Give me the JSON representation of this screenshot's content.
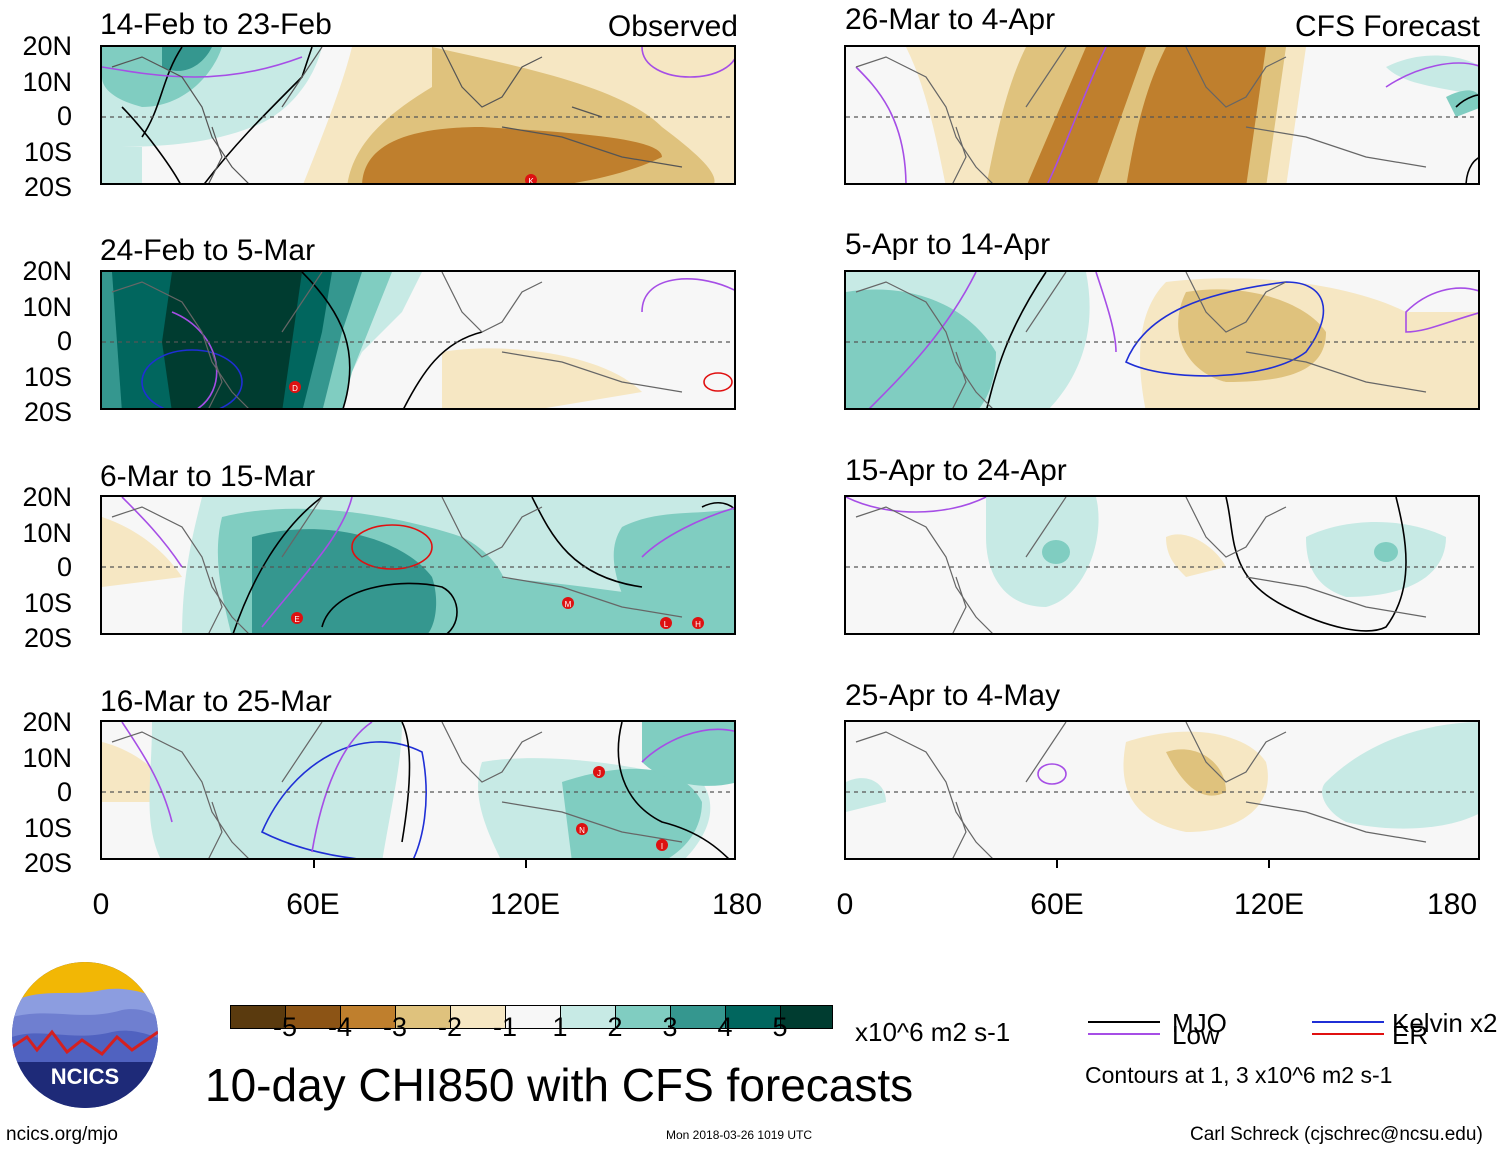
{
  "figure": {
    "title": "10-day CHI850 with CFS forecasts",
    "left_column_label": "Observed",
    "right_column_label": "CFS Forecast",
    "y_ticks": [
      "20N",
      "10N",
      "0",
      "10S",
      "20S"
    ],
    "x_ticks": [
      "0",
      "60E",
      "120E",
      "180"
    ]
  },
  "panels": {
    "p0": {
      "title": "14-Feb to 23-Feb"
    },
    "p1": {
      "title": "24-Feb to 5-Mar"
    },
    "p2": {
      "title": "6-Mar to 15-Mar"
    },
    "p3": {
      "title": "16-Mar to 25-Mar"
    },
    "p4": {
      "title": "26-Mar to 4-Apr"
    },
    "p5": {
      "title": "5-Apr to 14-Apr"
    },
    "p6": {
      "title": "15-Apr to 24-Apr"
    },
    "p7": {
      "title": "25-Apr to 4-May"
    }
  },
  "storm_markers": {
    "p0": [
      "K"
    ],
    "p1": [
      "D"
    ],
    "p2": [
      "E",
      "M",
      "L",
      "H"
    ],
    "p3": [
      "J",
      "N",
      "I"
    ]
  },
  "colorbar": {
    "labels": [
      "-5",
      "-4",
      "-3",
      "-2",
      "-1",
      "1",
      "2",
      "3",
      "4",
      "5"
    ],
    "units": "x10^6 m2 s-1",
    "colors": [
      "#5a3a0e",
      "#8c5415",
      "#bf7f2d",
      "#dfc27d",
      "#f6e7c3",
      "#f7f7f7",
      "#c7eae5",
      "#80cdc1",
      "#35978f",
      "#01665e",
      "#003c30"
    ]
  },
  "legend": {
    "mjo": "MJO",
    "kelvin": "Kelvin x2",
    "low": "Low",
    "er": "ER",
    "contour_note": "Contours at 1, 3 x10^6 m2 s-1",
    "colors": {
      "mjo": "#000000",
      "kelvin": "#1f2fd6",
      "low": "#a64ee6",
      "er": "#e01010"
    }
  },
  "footer": {
    "url": "ncics.org/mjo",
    "timestamp": "Mon 2018-03-26 1019 UTC",
    "credit": "Carl Schreck (cjschrec@ncsu.edu)",
    "logo_text": "NCICS"
  }
}
